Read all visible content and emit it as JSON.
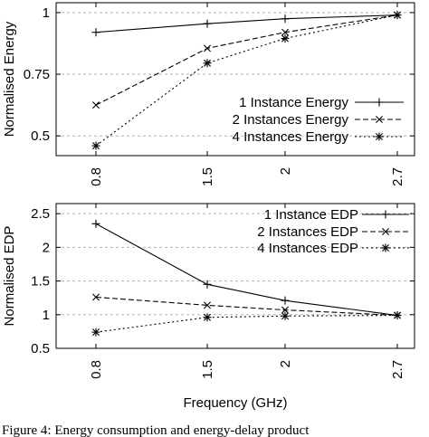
{
  "chart_data": [
    {
      "type": "line",
      "categories": [
        "0.8",
        "1.5",
        "2",
        "2.7"
      ],
      "xlabel": "",
      "ylabel": "Normalised Energy",
      "ylim": [
        0.42,
        1.04
      ],
      "yticks": [
        0.5,
        0.75,
        1
      ],
      "ytick_labels": [
        "0.5",
        "0.75",
        "1"
      ],
      "grid": "horizontal dashed",
      "legend": "bottom-right",
      "series": [
        {
          "name": "1 Instance Energy",
          "marker": "plus",
          "line": "solid",
          "values": [
            0.92,
            0.955,
            0.975,
            0.99
          ]
        },
        {
          "name": "2 Instances Energy",
          "marker": "cross",
          "line": "dashed",
          "values": [
            0.625,
            0.855,
            0.92,
            0.99
          ]
        },
        {
          "name": "4 Instances Energy",
          "marker": "star",
          "line": "dotted",
          "values": [
            0.46,
            0.795,
            0.895,
            0.99
          ]
        }
      ]
    },
    {
      "type": "line",
      "categories": [
        "0.8",
        "1.5",
        "2",
        "2.7"
      ],
      "xlabel": "Frequency (GHz)",
      "ylabel": "Normalised EDP",
      "ylim": [
        0.5,
        2.65
      ],
      "yticks": [
        0.5,
        1,
        1.5,
        2,
        2.5
      ],
      "ytick_labels": [
        "0.5",
        "1",
        "1.5",
        "2",
        "2.5"
      ],
      "grid": "horizontal dashed",
      "legend": "top-right",
      "series": [
        {
          "name": "1 Instance EDP",
          "marker": "plus",
          "line": "solid",
          "values": [
            2.35,
            1.45,
            1.21,
            0.99
          ]
        },
        {
          "name": "2 Instances EDP",
          "marker": "cross",
          "line": "dashed",
          "values": [
            1.26,
            1.14,
            1.07,
            0.99
          ]
        },
        {
          "name": "4 Instances EDP",
          "marker": "star",
          "line": "dotted",
          "values": [
            0.74,
            0.96,
            0.98,
            0.99
          ]
        }
      ]
    }
  ],
  "caption": "Figure 4: Energy consumption and energy-delay product"
}
